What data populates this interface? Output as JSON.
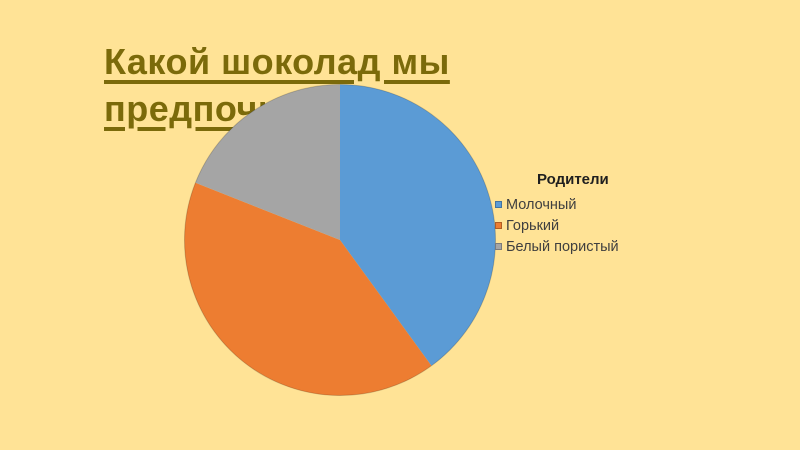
{
  "slide": {
    "title": {
      "line1": "Какой шоколад мы",
      "line2": "предпочитаем"
    }
  },
  "chart_data": {
    "type": "pie",
    "title": "Родители",
    "categories": [
      "Молочный",
      "Горький",
      "Белый пористый"
    ],
    "values": [
      40,
      41,
      19
    ],
    "angles_deg": [
      144,
      147.6,
      68.4
    ],
    "colors": [
      "#5B9BD5",
      "#ED7D31",
      "#A5A5A5"
    ],
    "start_angle_deg": 0,
    "direction": "clockwise",
    "legend_position": "right",
    "data_labels_shown": false
  },
  "colors": {
    "slide_background": "#FFE396",
    "title_text": "#7B6A0A",
    "legend_title_text": "#1F1F1F",
    "legend_item_text": "#3F3F3F",
    "pie_outline": "rgba(0,0,0,0.18)"
  }
}
